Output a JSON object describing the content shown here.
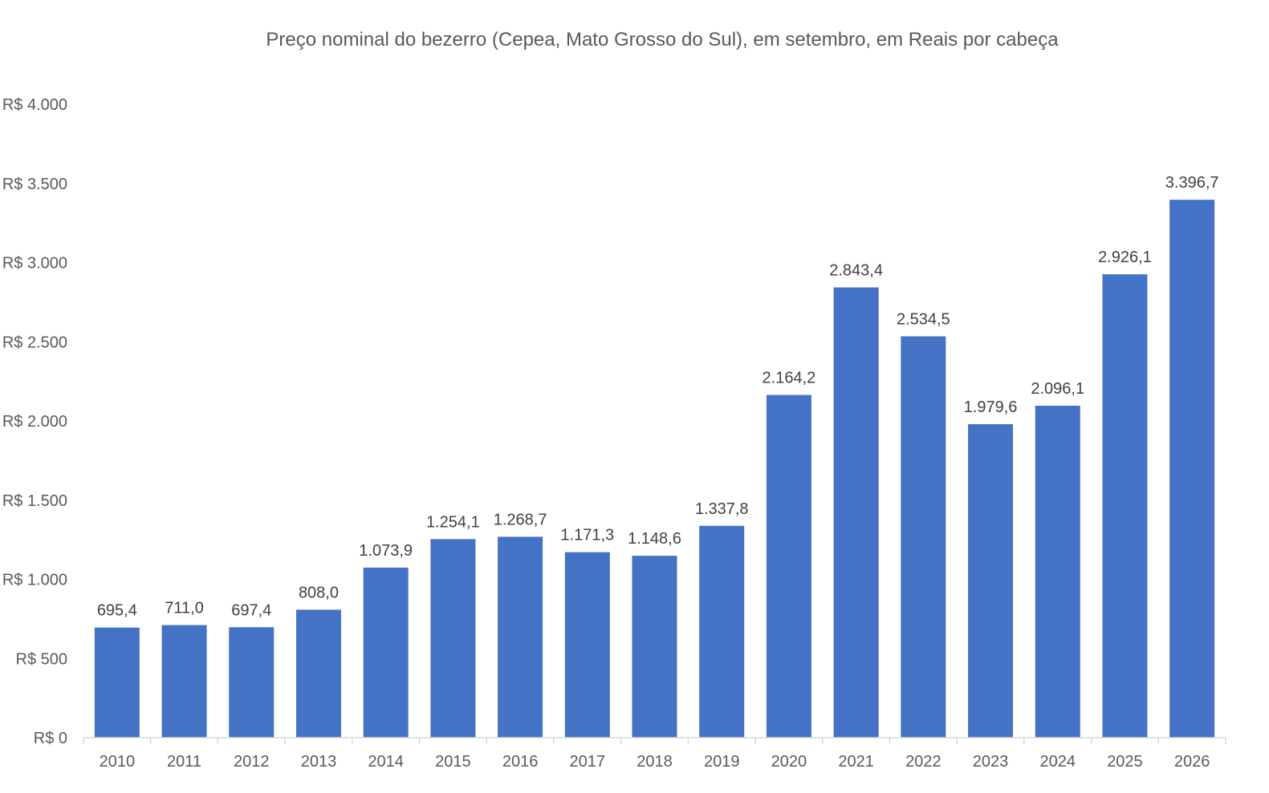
{
  "chart_data": {
    "type": "bar",
    "title": "Preço nominal do bezerro (Cepea, Mato Grosso do Sul), em setembro, em Reais por cabeça",
    "xlabel": "",
    "ylabel": "",
    "categories": [
      "2010",
      "2011",
      "2012",
      "2013",
      "2014",
      "2015",
      "2016",
      "2017",
      "2018",
      "2019",
      "2020",
      "2021",
      "2022",
      "2023",
      "2024",
      "2025",
      "2026"
    ],
    "values": [
      695.4,
      711.0,
      697.4,
      808.0,
      1073.9,
      1254.1,
      1268.7,
      1171.3,
      1148.6,
      1337.8,
      2164.2,
      2843.4,
      2534.5,
      1979.6,
      2096.1,
      2926.1,
      3396.7
    ],
    "data_labels": [
      "695,4",
      "711,0",
      "697,4",
      "808,0",
      "1.073,9",
      "1.254,1",
      "1.268,7",
      "1.171,3",
      "1.148,6",
      "1.337,8",
      "2.164,2",
      "2.843,4",
      "2.534,5",
      "1.979,6",
      "2.096,1",
      "2.926,1",
      "3.396,7"
    ],
    "ylim": [
      0,
      4000
    ],
    "yticks": [
      0,
      500,
      1000,
      1500,
      2000,
      2500,
      3000,
      3500,
      4000
    ],
    "ytick_labels": [
      "R$ 0",
      "R$ 500",
      "R$ 1.000",
      "R$ 1.500",
      "R$ 2.000",
      "R$ 2.500",
      "R$ 3.000",
      "R$ 3.500",
      "R$ 4.000"
    ],
    "grid": false,
    "legend": "none",
    "colors": {
      "bar": "#4472C4",
      "text": "#595959",
      "label": "#404040",
      "axis": "#D9D9D9"
    }
  }
}
